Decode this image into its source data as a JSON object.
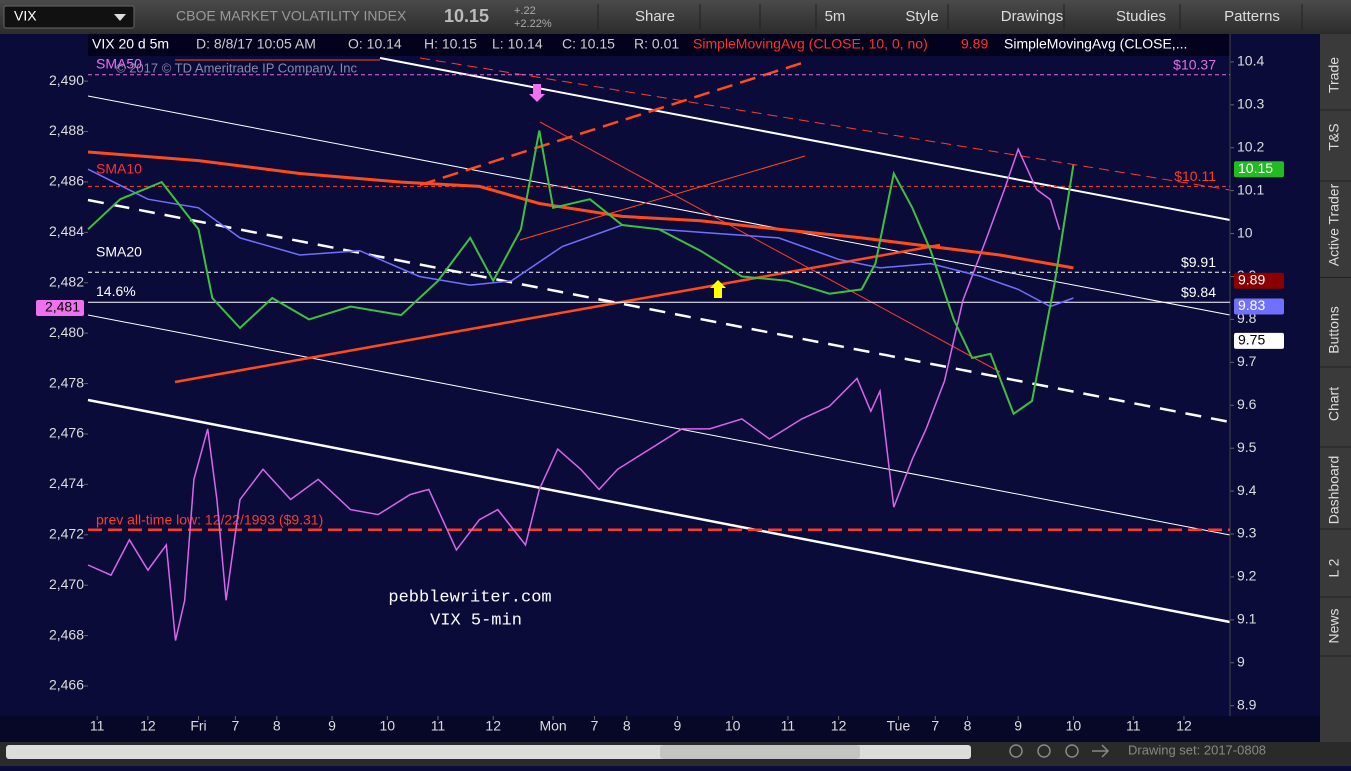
{
  "toolbar": {
    "symbol": "VIX",
    "description": "CBOE MARKET VOLATILITY INDEX",
    "last": "10.15",
    "change": "+.22",
    "change_pct": "+2.22%",
    "buttons": [
      "Share",
      "5m",
      "Style",
      "Drawings",
      "Studies",
      "Patterns"
    ]
  },
  "sidebar_tabs": [
    "Trade",
    "T&S",
    "Active Trader",
    "Buttons",
    "Chart",
    "Dashboard",
    "L 2",
    "News"
  ],
  "chart_header": [
    "VIX 20 d 5m",
    "D: 8/8/17 10:05 AM",
    "O: 10.14",
    "H: 10.15",
    "L: 10.14",
    "C: 10.15",
    "R: 0.01",
    "SimpleMovingAvg (CLOSE, 10, 0, no)",
    "9.89",
    "SimpleMovingAvg (CLOSE,..."
  ],
  "footer": {
    "drawing_set": "Drawing set: 2017-0808"
  },
  "chart_data": {
    "type": "line",
    "annotations": [
      "SMA50",
      "SMA10",
      "SMA20",
      "pebblewriter.com",
      "VIX 5-min",
      "© 2017 © TD Ameritrade IP Company, Inc"
    ],
    "xlim": [
      0,
      248
    ],
    "xticks": [
      {
        "value": 2,
        "label": "11"
      },
      {
        "value": 13,
        "label": "12"
      },
      {
        "value": 24,
        "label": "Fri"
      },
      {
        "value": 32,
        "label": "7"
      },
      {
        "value": 41,
        "label": "8"
      },
      {
        "value": 53,
        "label": "9"
      },
      {
        "value": 65,
        "label": "10"
      },
      {
        "value": 76,
        "label": "11"
      },
      {
        "value": 88,
        "label": "12"
      },
      {
        "value": 101,
        "label": "Mon"
      },
      {
        "value": 110,
        "label": "7"
      },
      {
        "value": 117,
        "label": "8"
      },
      {
        "value": 128,
        "label": "9"
      },
      {
        "value": 140,
        "label": "10"
      },
      {
        "value": 152,
        "label": "11"
      },
      {
        "value": 163,
        "label": "12"
      },
      {
        "value": 176,
        "label": "Tue"
      },
      {
        "value": 184,
        "label": "7"
      },
      {
        "value": 191,
        "label": "8"
      },
      {
        "value": 202,
        "label": "9"
      },
      {
        "value": 214,
        "label": "10"
      },
      {
        "value": 227,
        "label": "11"
      },
      {
        "value": 238,
        "label": "12"
      }
    ],
    "ylim": [
      2464.81,
      2491.87
    ],
    "yticks": [
      {
        "value": 2466,
        "label": "2,466"
      },
      {
        "value": 2468,
        "label": "2,468"
      },
      {
        "value": 2470,
        "label": "2,470"
      },
      {
        "value": 2472,
        "label": "2,472"
      },
      {
        "value": 2474,
        "label": "2,474"
      },
      {
        "value": 2476,
        "label": "2,476"
      },
      {
        "value": 2478,
        "label": "2,478"
      },
      {
        "value": 2480,
        "label": "2,480"
      },
      {
        "value": 2482,
        "label": "2,482"
      },
      {
        "value": 2484,
        "label": "2,484"
      },
      {
        "value": 2486,
        "label": "2,486"
      },
      {
        "value": 2488,
        "label": "2,488"
      },
      {
        "value": 2490,
        "label": "2,490"
      }
    ],
    "y2lim": [
      8.876,
      10.465
    ],
    "y2ticks": [
      8.9,
      9,
      9.1,
      9.2,
      9.3,
      9.4,
      9.5,
      9.6,
      9.7,
      9.8,
      9.9,
      10,
      10.1,
      10.2,
      10.3,
      10.4
    ],
    "series": [
      {
        "color": "#3fbf3f",
        "axis": "y2",
        "x": [
          0,
          7,
          16,
          24,
          27,
          33,
          40,
          48,
          57,
          68,
          76,
          83,
          88,
          94,
          98,
          101,
          109,
          116,
          124,
          133,
          142,
          152,
          161,
          168,
          171,
          175,
          179,
          183,
          188,
          192,
          196,
          201,
          205,
          210,
          214
        ],
        "values": [
          10.01,
          10.08,
          10.12,
          10.01,
          9.85,
          9.78,
          9.85,
          9.8,
          9.83,
          9.81,
          9.89,
          9.99,
          9.89,
          10.01,
          10.24,
          10.06,
          10.08,
          10.02,
          10.01,
          9.96,
          9.9,
          9.89,
          9.86,
          9.87,
          9.93,
          10.14,
          10.06,
          9.96,
          9.8,
          9.71,
          9.72,
          9.58,
          9.61,
          9.89,
          10.16
        ]
      },
      {
        "color": "#7070ff",
        "axis": "y2",
        "x": [
          0,
          13,
          24,
          33,
          46,
          59,
          72,
          83,
          92,
          103,
          116,
          124,
          137,
          150,
          163,
          172,
          183,
          194,
          202,
          209,
          214
        ],
        "values": [
          10.15,
          10.08,
          10.06,
          9.99,
          9.95,
          9.96,
          9.9,
          9.88,
          9.89,
          9.97,
          10.02,
          10.01,
          10,
          9.99,
          9.94,
          9.92,
          9.93,
          9.9,
          9.87,
          9.83,
          9.85
        ]
      },
      {
        "color": "#ff4a1a",
        "axis": "y2",
        "x": [
          0,
          24,
          46,
          68,
          85,
          98,
          116,
          133,
          150,
          168,
          183,
          198,
          214
        ],
        "values": [
          10.19,
          10.17,
          10.14,
          10.12,
          10.11,
          10.07,
          10.04,
          10.03,
          10.01,
          9.99,
          9.97,
          9.95,
          9.92
        ]
      },
      {
        "color": "#d866e8",
        "axis": "y",
        "x": [
          0,
          5,
          9,
          13,
          17,
          19,
          21,
          23,
          26,
          28,
          30,
          33,
          38,
          44,
          50,
          57,
          63,
          70,
          74,
          80,
          85,
          89,
          95,
          98,
          102,
          107,
          111,
          115,
          122,
          129,
          135,
          142,
          148,
          155,
          161,
          167,
          170,
          172,
          175,
          179,
          182,
          186,
          190,
          195,
          199,
          202,
          206,
          209,
          211
        ],
        "values": [
          2470.8,
          2470.4,
          2471.8,
          2470.6,
          2471.6,
          2467.8,
          2469.4,
          2474.2,
          2476.2,
          2473.4,
          2469.4,
          2473.4,
          2474.6,
          2473.4,
          2474.2,
          2473,
          2472.8,
          2473.6,
          2473.8,
          2471.4,
          2472.6,
          2473,
          2471.6,
          2473.8,
          2475.4,
          2474.6,
          2473.8,
          2474.6,
          2475.4,
          2476.2,
          2476.2,
          2476.6,
          2475.8,
          2476.6,
          2477.1,
          2478.2,
          2476.9,
          2477.7,
          2473.1,
          2475,
          2476.2,
          2478.1,
          2481.3,
          2483.7,
          2485.7,
          2487.3,
          2485.7,
          2485.3,
          2484.1
        ]
      }
    ],
    "levels": [
      {
        "value": 10.37,
        "label": "$10.37",
        "color": "#e070e0",
        "dash": true
      },
      {
        "value": 10.11,
        "label": "$10.11",
        "color": "#ff3a2a",
        "dash": true
      },
      {
        "value": 9.91,
        "label": "$9.91",
        "color": "#ffffff",
        "dash": true
      },
      {
        "value": 9.84,
        "label": "$9.84",
        "color": "#ffffff",
        "dash": false
      },
      {
        "value": 9.31,
        "label": "prev all-time low: 12/22/1993 ($9.31)",
        "color": "#ff3a2a",
        "dash": true
      }
    ],
    "level_side_label": "14.6%",
    "price_boxes": [
      {
        "value": 10.15,
        "color": "#22bb22",
        "text_color": "#ffffff"
      },
      {
        "value": 9.89,
        "color": "#8a0000",
        "text_color": "#ffffff"
      },
      {
        "value": 9.83,
        "color": "#7070ff",
        "text_color": "#ffffff"
      },
      {
        "value": 9.75,
        "color": "#ffffff",
        "text_color": "#000000"
      }
    ],
    "left_box": {
      "value": 2481,
      "label": "2,481",
      "color": "#f070f0"
    }
  }
}
